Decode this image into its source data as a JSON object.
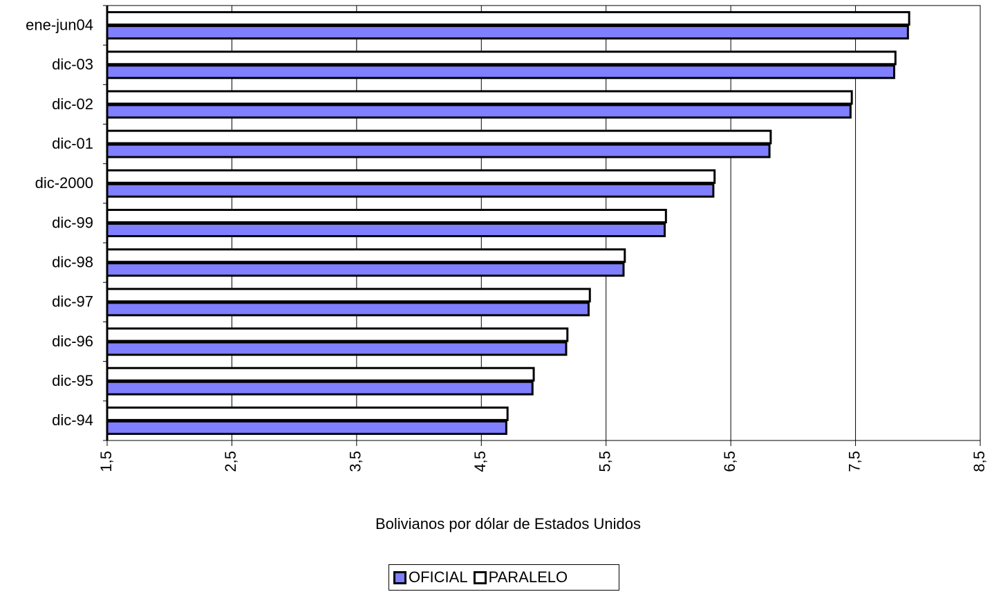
{
  "colors": {
    "oficial": "#7f7fff",
    "paralelo": "#ffffff",
    "grid": "#000000"
  },
  "chart_data": {
    "type": "bar",
    "orientation": "horizontal",
    "title": "",
    "xlabel": "Bolivianos por dólar de Estados Unidos",
    "ylabel": "",
    "xlim": [
      1.5,
      8.5
    ],
    "xticks": [
      "1,5",
      "2,5",
      "3,5",
      "4,5",
      "5,5",
      "6,5",
      "7,5",
      "8,5"
    ],
    "xtick_values": [
      1.5,
      2.5,
      3.5,
      4.5,
      5.5,
      6.5,
      7.5,
      8.5
    ],
    "categories": [
      "ene-jun04",
      "dic-03",
      "dic-02",
      "dic-01",
      "dic-2000",
      "dic-99",
      "dic-98",
      "dic-97",
      "dic-96",
      "dic-95",
      "dic-94"
    ],
    "series": [
      {
        "name": "OFICIAL",
        "values": [
          7.92,
          7.81,
          7.46,
          6.81,
          6.36,
          5.97,
          5.64,
          5.36,
          5.18,
          4.91,
          4.7
        ]
      },
      {
        "name": "PARALELO",
        "values": [
          7.93,
          7.82,
          7.47,
          6.82,
          6.37,
          5.98,
          5.65,
          5.37,
          5.19,
          4.92,
          4.71
        ]
      }
    ],
    "grid": "vertical",
    "legend_position": "bottom"
  },
  "legend": {
    "oficial_label": "OFICIAL",
    "paralelo_label": "PARALELO"
  }
}
